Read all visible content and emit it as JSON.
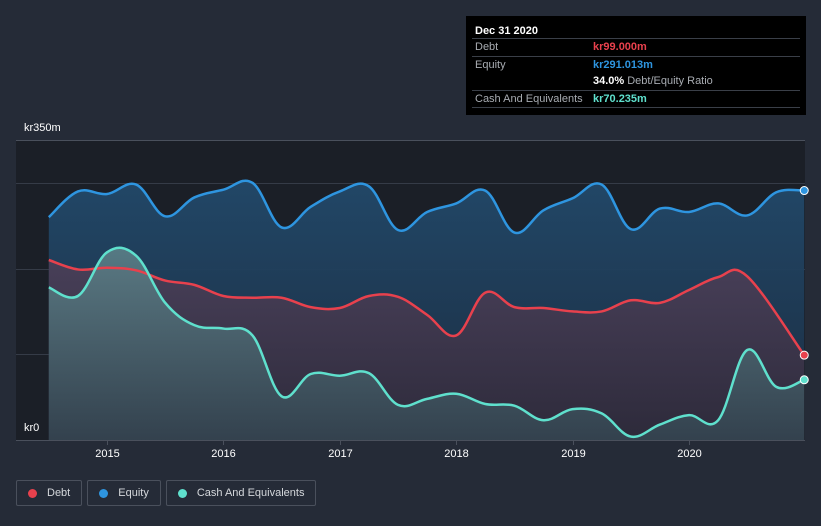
{
  "tooltip": {
    "date": "Dec 31 2020",
    "rows": [
      {
        "label": "Debt",
        "value": "kr99.000m",
        "color": "#e8414d"
      },
      {
        "label": "Equity",
        "value": "kr291.013m",
        "color": "#2e95e0"
      },
      {
        "label": "Cash And Equivalents",
        "value": "kr70.235m",
        "color": "#5fe0cd"
      }
    ],
    "ratio_value": "34.0%",
    "ratio_label": "Debt/Equity Ratio"
  },
  "legend": [
    {
      "label": "Debt",
      "color": "#e8414d"
    },
    {
      "label": "Equity",
      "color": "#2e95e0"
    },
    {
      "label": "Cash And Equivalents",
      "color": "#5fe0cd"
    }
  ],
  "chart_data": {
    "type": "area",
    "title": "",
    "xlabel": "",
    "ylabel": "",
    "currency_prefix": "kr",
    "y_tick_labels": [
      "kr350m",
      "kr0"
    ],
    "ylim": [
      0,
      350
    ],
    "y_gridlines": [
      100,
      200,
      300,
      350
    ],
    "x_tick_labels": [
      "2015",
      "2016",
      "2017",
      "2018",
      "2019",
      "2020"
    ],
    "x_ticks": [
      2015,
      2016,
      2017,
      2018,
      2019,
      2020
    ],
    "xlim": [
      2014.5,
      2020.99
    ],
    "grid": true,
    "legend_position": "bottom-left",
    "series": [
      {
        "name": "Equity",
        "color": "#2e95e0",
        "x": [
          2014.5,
          2014.75,
          2015.0,
          2015.25,
          2015.5,
          2015.75,
          2016.0,
          2016.25,
          2016.5,
          2016.75,
          2017.0,
          2017.25,
          2017.5,
          2017.75,
          2018.0,
          2018.25,
          2018.5,
          2018.75,
          2019.0,
          2019.25,
          2019.5,
          2019.75,
          2020.0,
          2020.25,
          2020.5,
          2020.75,
          2020.99
        ],
        "values": [
          260,
          290,
          287,
          298,
          261,
          283,
          292,
          300,
          248,
          272,
          290,
          296,
          245,
          266,
          276,
          291,
          242,
          268,
          282,
          298,
          246,
          270,
          266,
          276,
          262,
          289,
          291.013
        ]
      },
      {
        "name": "Debt",
        "color": "#e8414d",
        "x": [
          2014.5,
          2014.75,
          2015.0,
          2015.25,
          2015.5,
          2015.75,
          2016.0,
          2016.25,
          2016.5,
          2016.75,
          2017.0,
          2017.25,
          2017.5,
          2017.75,
          2018.0,
          2018.25,
          2018.5,
          2018.75,
          2019.0,
          2019.25,
          2019.5,
          2019.75,
          2020.0,
          2020.25,
          2020.5,
          2020.99
        ],
        "values": [
          210,
          199,
          201,
          198,
          186,
          181,
          168,
          166,
          166,
          155,
          154,
          168,
          167,
          146,
          122,
          172,
          155,
          154,
          150,
          150,
          163,
          160,
          175,
          190,
          191,
          99
        ]
      },
      {
        "name": "Cash And Equivalents",
        "color": "#5fe0cd",
        "x": [
          2014.5,
          2014.75,
          2015.0,
          2015.25,
          2015.5,
          2015.75,
          2016.0,
          2016.25,
          2016.5,
          2016.75,
          2017.0,
          2017.25,
          2017.5,
          2017.75,
          2018.0,
          2018.25,
          2018.5,
          2018.75,
          2019.0,
          2019.25,
          2019.5,
          2019.75,
          2020.0,
          2020.25,
          2020.5,
          2020.75,
          2020.99
        ],
        "values": [
          178,
          168,
          219,
          215,
          160,
          134,
          130,
          122,
          51,
          77,
          75,
          78,
          41,
          48,
          54,
          42,
          40,
          23,
          36,
          31,
          4,
          18,
          29,
          23,
          105,
          62,
          70.235
        ]
      }
    ],
    "end_values": {
      "Debt": 99.0,
      "Equity": 291.013,
      "Cash And Equivalents": 70.235,
      "Debt/Equity Ratio": 34.0
    }
  }
}
